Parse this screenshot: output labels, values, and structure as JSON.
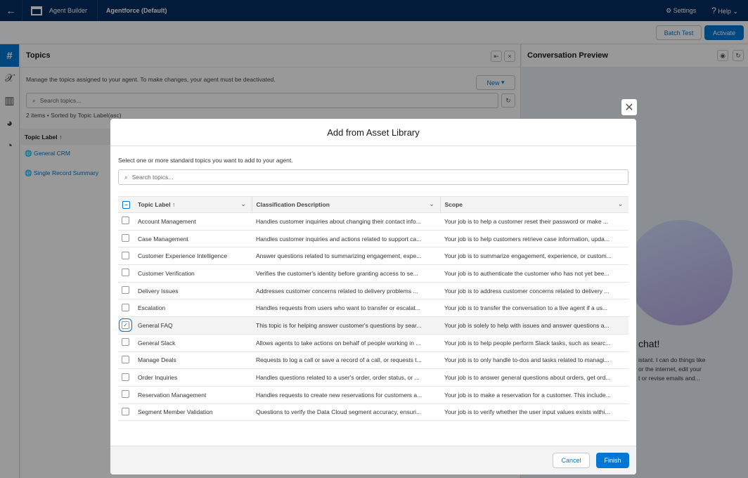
{
  "topbar": {
    "app_name": "Agent Builder",
    "agent_name": "Agentforce (Default)",
    "settings": "Settings",
    "help": "Help"
  },
  "toolbar": {
    "batch_test": "Batch Test",
    "activate": "Activate"
  },
  "topics_panel": {
    "title": "Topics",
    "description": "Manage the topics assigned to your agent. To make changes, your agent must be deactivated.",
    "new_label": "New",
    "search_placeholder": "Search topics...",
    "summary": "2 items • Sorted by Topic Label(asc)",
    "column": "Topic Label",
    "items": [
      "General CRM",
      "Single Record Summary"
    ]
  },
  "preview": {
    "title": "Conversation Preview",
    "greeting": "chat!",
    "text1": "istant. I can do things like",
    "text2": "or the internet, edit your",
    "text3": "t or revise emails and..."
  },
  "modal": {
    "title": "Add from Asset Library",
    "instructions": "Select one or more standard topics you want to add to your agent.",
    "search_placeholder": "Search topics...",
    "columns": [
      "Topic Label",
      "Classification Description",
      "Scope"
    ],
    "rows": [
      {
        "label": "Account Management",
        "desc": "Handles customer inquiries about changing their contact info...",
        "scope": "Your job is to help a customer reset their password or make ...",
        "checked": false
      },
      {
        "label": "Case Management",
        "desc": "Handles customer inquiries and actions related to support ca...",
        "scope": "Your job is to help customers retrieve case information, upda...",
        "checked": false
      },
      {
        "label": "Customer Experience Intelligence",
        "desc": "Answer questions related to summarizing engagement, expe...",
        "scope": "Your job is to summarize engagement, experience, or custom...",
        "checked": false
      },
      {
        "label": "Customer Verification",
        "desc": "Verifies the customer's identity before granting access to se...",
        "scope": "Your job is to authenticate the customer who has not yet bee...",
        "checked": false
      },
      {
        "label": "Delivery Issues",
        "desc": "Addresses customer concerns related to delivery problems ...",
        "scope": "Your job is to address customer concerns related to delivery ...",
        "checked": false
      },
      {
        "label": "Escalation",
        "desc": "Handles requests from users who want to transfer or escalat...",
        "scope": "Your job is to transfer the conversation to a live agent if a us...",
        "checked": false
      },
      {
        "label": "General FAQ",
        "desc": "This topic is for helping answer customer's questions by sear...",
        "scope": "Your job is solely to help with issues and answer questions a...",
        "checked": true
      },
      {
        "label": "General Slack",
        "desc": "Allows agents to take actions on behalf of people working in ...",
        "scope": "Your job is to help people perform Slack tasks, such as searc...",
        "checked": false
      },
      {
        "label": "Manage Deals",
        "desc": "Requests to log a call or save a record of a call, or requests t...",
        "scope": "Your job is to only handle to-dos and tasks related to managi...",
        "checked": false
      },
      {
        "label": "Order Inquiries",
        "desc": "Handles questions related to a user's order, order status, or ...",
        "scope": "Your job is to answer general questions about orders, get ord...",
        "checked": false
      },
      {
        "label": "Reservation Management",
        "desc": "Handles requests to create new reservations for customers a...",
        "scope": "Your job is to make a reservation for a customer. This include...",
        "checked": false
      },
      {
        "label": "Segment Member Validation",
        "desc": "Questions to verify the Data Cloud segment accuracy, ensuri...",
        "scope": "Your job is to verify whether the user input values exists withi...",
        "checked": false
      }
    ],
    "cancel": "Cancel",
    "finish": "Finish"
  },
  "colors": {
    "brand": "#0176d3",
    "topbar": "#032d60"
  }
}
